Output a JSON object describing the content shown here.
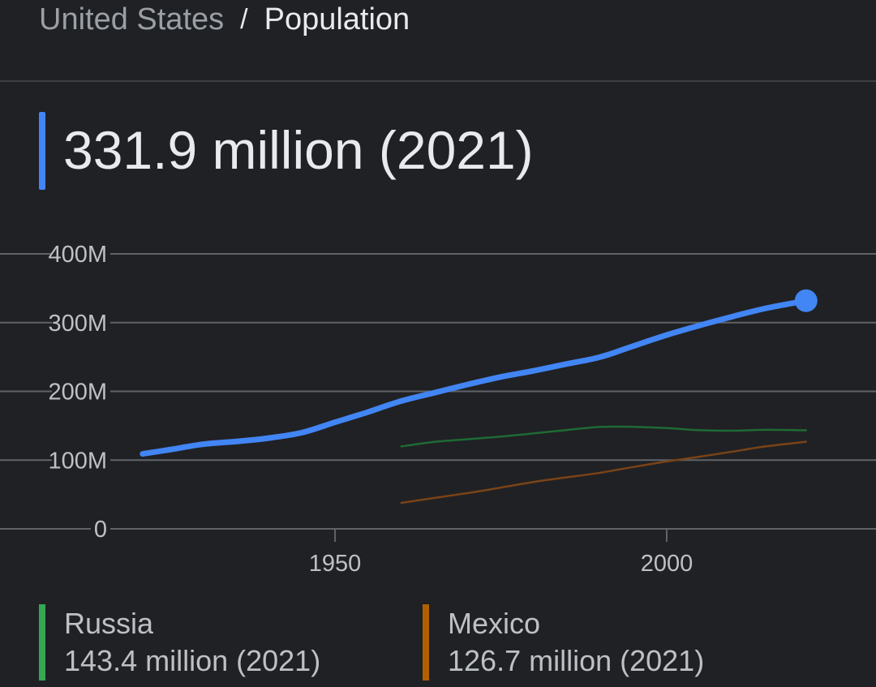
{
  "breadcrumb": {
    "parent": "United States",
    "separator": "/",
    "current": "Population"
  },
  "headline": {
    "value": "331.9 million (2021)",
    "color": "#4285f4"
  },
  "legend": [
    {
      "name": "Russia",
      "value": "143.4 million (2021)",
      "color": "#34a853"
    },
    {
      "name": "Mexico",
      "value": "126.7 million (2021)",
      "color": "#b06000"
    }
  ],
  "chart_data": {
    "type": "line",
    "title": "",
    "xlabel": "",
    "ylabel": "",
    "ylim": [
      0,
      400
    ],
    "xlim": [
      1900,
      2028
    ],
    "y_ticks": [
      {
        "value": 0,
        "label": "0"
      },
      {
        "value": 100,
        "label": "100M"
      },
      {
        "value": 200,
        "label": "200M"
      },
      {
        "value": 300,
        "label": "300M"
      },
      {
        "value": 400,
        "label": "400M"
      }
    ],
    "x_ticks": [
      {
        "value": 1950,
        "label": "1950"
      },
      {
        "value": 2000,
        "label": "2000"
      }
    ],
    "grid": true,
    "legend_position": "bottom",
    "series": [
      {
        "name": "United States",
        "color": "#4285f4",
        "highlight_last_point": true,
        "points": [
          [
            1921,
            109
          ],
          [
            1925,
            115
          ],
          [
            1930,
            123
          ],
          [
            1935,
            127
          ],
          [
            1940,
            132
          ],
          [
            1945,
            140
          ],
          [
            1950,
            155
          ],
          [
            1955,
            170
          ],
          [
            1960,
            186
          ],
          [
            1965,
            198
          ],
          [
            1970,
            210
          ],
          [
            1975,
            221
          ],
          [
            1980,
            230
          ],
          [
            1985,
            240
          ],
          [
            1990,
            250
          ],
          [
            1995,
            266
          ],
          [
            2000,
            282
          ],
          [
            2005,
            296
          ],
          [
            2010,
            309
          ],
          [
            2015,
            321
          ],
          [
            2021,
            331.9
          ]
        ]
      },
      {
        "name": "Russia",
        "color": "#34a853",
        "points": [
          [
            1960,
            119.9
          ],
          [
            1965,
            126.5
          ],
          [
            1970,
            130.4
          ],
          [
            1975,
            134.2
          ],
          [
            1980,
            139.0
          ],
          [
            1985,
            143.8
          ],
          [
            1990,
            148.3
          ],
          [
            1995,
            148.4
          ],
          [
            2000,
            146.6
          ],
          [
            2005,
            143.5
          ],
          [
            2010,
            142.8
          ],
          [
            2015,
            144.1
          ],
          [
            2021,
            143.4
          ]
        ]
      },
      {
        "name": "Mexico",
        "color": "#b06000",
        "points": [
          [
            1960,
            37.8
          ],
          [
            1965,
            45.0
          ],
          [
            1970,
            52.0
          ],
          [
            1975,
            60.0
          ],
          [
            1980,
            68.3
          ],
          [
            1985,
            75.0
          ],
          [
            1990,
            81.7
          ],
          [
            1995,
            90.0
          ],
          [
            2000,
            98.0
          ],
          [
            2005,
            105.0
          ],
          [
            2010,
            112.5
          ],
          [
            2015,
            120.0
          ],
          [
            2021,
            126.7
          ]
        ]
      }
    ]
  }
}
